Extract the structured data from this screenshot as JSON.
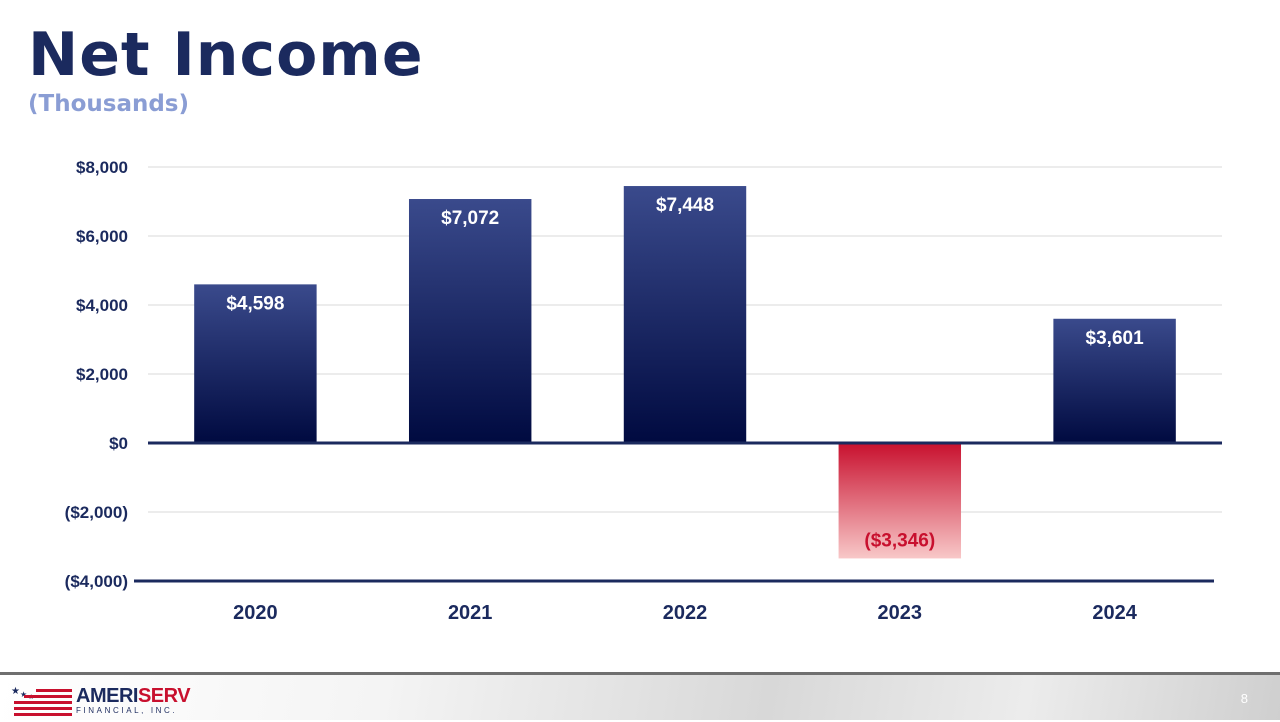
{
  "slide": {
    "title": "Net Income",
    "subtitle": "(Thousands)",
    "page_number": "8"
  },
  "logo": {
    "text_part1": "AMERI",
    "text_part2": "SERV",
    "subtext": "FINANCIAL, INC."
  },
  "colors": {
    "positive_top": "#3a4a8c",
    "positive_bottom": "#000a40",
    "negative_top": "#c8102e",
    "negative_bottom": "#f8c8c8",
    "axis": "#1b2a5e",
    "negative_label": "#c8102e"
  },
  "chart_data": {
    "type": "bar",
    "categories": [
      "2020",
      "2021",
      "2022",
      "2023",
      "2024"
    ],
    "values": [
      4598,
      7072,
      7448,
      -3346,
      3601
    ],
    "data_labels": [
      "$4,598",
      "$7,072",
      "$7,448",
      "($3,346)",
      "$3,601"
    ],
    "ylim": [
      -4000,
      8000
    ],
    "y_ticks": [
      8000,
      6000,
      4000,
      2000,
      0,
      -2000,
      -4000
    ],
    "y_tick_labels": [
      "$8,000",
      "$6,000",
      "$4,000",
      "$2,000",
      "$0",
      "($2,000)",
      "($4,000)"
    ],
    "grid": true,
    "legend": "none"
  }
}
